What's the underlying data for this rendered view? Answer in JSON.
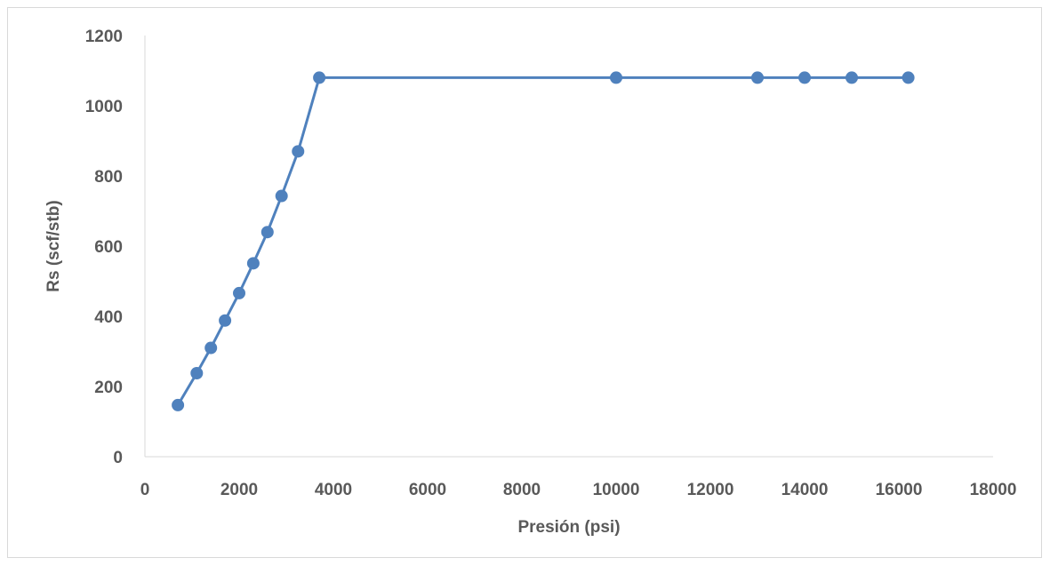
{
  "chart_data": {
    "type": "line",
    "xlabel": "Presión (psi)",
    "ylabel": "Rs (scf/stb)",
    "xlim": [
      0,
      18000
    ],
    "ylim": [
      0,
      1200
    ],
    "x_ticks": [
      0,
      2000,
      4000,
      6000,
      8000,
      10000,
      12000,
      14000,
      16000,
      18000
    ],
    "y_ticks": [
      0,
      200,
      400,
      600,
      800,
      1000,
      1200
    ],
    "grid": false,
    "legend": "none",
    "series_color": "#4f81bd",
    "series": [
      {
        "x": [
          700,
          1100,
          1400,
          1700,
          2000,
          2300,
          2600,
          2900,
          3250,
          3700,
          10000,
          13000,
          14000,
          15000,
          16200
        ],
        "y": [
          147,
          238,
          310,
          388,
          466,
          551,
          640,
          743,
          870,
          1080,
          1080,
          1080,
          1080,
          1080,
          1080
        ]
      }
    ]
  }
}
